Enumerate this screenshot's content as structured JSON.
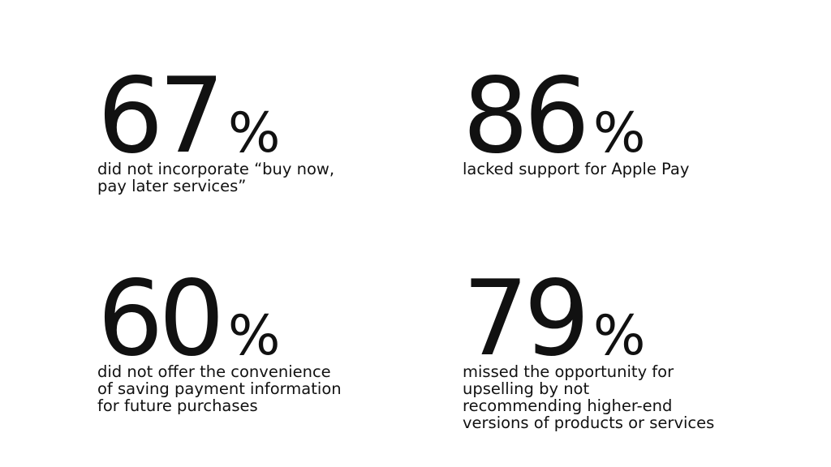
{
  "stats": [
    {
      "number": "67",
      "percent": "%",
      "description": "did not incorporate “buy now,\npay later services”"
    },
    {
      "number": "86",
      "percent": "%",
      "description": "lacked support for Apple Pay"
    },
    {
      "number": "60",
      "percent": "%",
      "description": "did not offer the convenience\nof saving payment information\nfor future purchases"
    },
    {
      "number": "79",
      "percent": "%",
      "description": "missed the opportunity for\nupselling by not\nrecommending higher-end\nversions of products or services"
    }
  ]
}
